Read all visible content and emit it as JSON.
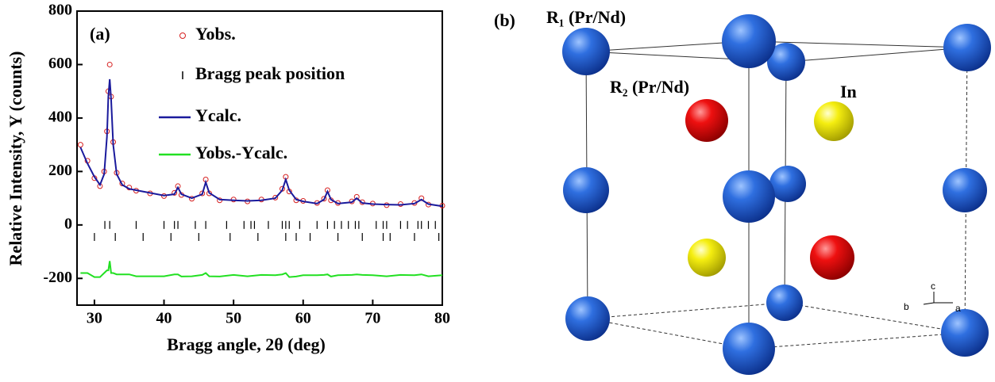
{
  "chart_data": {
    "type": "line",
    "panel_label": "(a)",
    "xlabel": "Bragg angle, 2θ (deg)",
    "ylabel": "Relative Intensity, Y (counts)",
    "xlim": [
      27.5,
      80
    ],
    "xticks": [
      30,
      40,
      50,
      60,
      70,
      80
    ],
    "ylim": [
      -300,
      800
    ],
    "yticks": [
      -200,
      0,
      200,
      400,
      600,
      800
    ],
    "x": [
      28,
      29,
      30,
      30.8,
      31.4,
      31.8,
      32.0,
      32.2,
      32.4,
      32.7,
      33.2,
      34,
      35,
      36,
      38,
      40,
      41.5,
      42,
      42.5,
      44,
      45.5,
      46,
      46.5,
      48,
      50,
      52,
      54,
      56,
      57,
      57.5,
      58,
      59,
      60,
      62,
      63,
      63.5,
      64,
      65,
      67,
      67.7,
      68.5,
      70,
      72,
      74,
      76,
      77,
      78,
      80
    ],
    "series": [
      {
        "name": "Yobs.",
        "color": "#d62020",
        "marker": "circle",
        "values": [
          300,
          240,
          175,
          145,
          200,
          350,
          500,
          600,
          480,
          310,
          195,
          155,
          140,
          128,
          118,
          108,
          120,
          145,
          112,
          98,
          118,
          170,
          118,
          92,
          95,
          88,
          95,
          102,
          135,
          180,
          125,
          92,
          90,
          82,
          98,
          130,
          92,
          82,
          88,
          105,
          85,
          80,
          74,
          78,
          82,
          100,
          76,
          72
        ]
      },
      {
        "name": "Bragg peak position",
        "color": "#000000",
        "marker": "tick",
        "x": [
          31.5,
          32.2,
          36,
          40,
          41.5,
          42,
          44.5,
          46,
          49,
          51.5,
          52.5,
          53,
          55,
          57,
          57.5,
          58,
          59.5,
          62,
          63.5,
          64.5,
          65.5,
          66.5,
          67.5,
          68,
          70.5,
          71.5,
          72,
          74,
          75,
          76.5,
          77,
          78,
          79,
          30,
          33,
          37,
          41,
          45,
          49.5,
          53.5,
          57.5,
          59,
          61,
          65,
          68.5,
          71.5,
          72.5,
          76,
          79.5
        ],
        "values": [
          0,
          0,
          0,
          0,
          0,
          0,
          0,
          0,
          0,
          0,
          0,
          0,
          0,
          0,
          0,
          0,
          0,
          0,
          0,
          0,
          0,
          0,
          0,
          0,
          0,
          0,
          0,
          0,
          0,
          0,
          0,
          0,
          0,
          -45,
          -45,
          -45,
          -45,
          -45,
          -45,
          -45,
          -45,
          -45,
          -45,
          -45,
          -45,
          -45,
          -45,
          -45,
          -45
        ]
      },
      {
        "name": "Ycalc.",
        "color": "#1a1a9c",
        "marker": "line",
        "values": [
          290,
          230,
          180,
          150,
          190,
          330,
          480,
          545,
          470,
          300,
          190,
          150,
          135,
          130,
          120,
          110,
          115,
          140,
          115,
          100,
          115,
          160,
          120,
          95,
          92,
          90,
          92,
          100,
          130,
          170,
          130,
          95,
          88,
          80,
          95,
          125,
          95,
          80,
          85,
          100,
          82,
          78,
          76,
          75,
          80,
          95,
          78,
          70
        ]
      },
      {
        "name": "Yobs.-Ycalc.",
        "color": "#22e022",
        "marker": "line",
        "values": [
          -180,
          -180,
          -195,
          -195,
          -180,
          -170,
          -170,
          -135,
          -180,
          -180,
          -185,
          -185,
          -185,
          -192,
          -192,
          -192,
          -185,
          -185,
          -193,
          -192,
          -187,
          -180,
          -192,
          -193,
          -187,
          -192,
          -187,
          -188,
          -185,
          -180,
          -195,
          -193,
          -188,
          -188,
          -187,
          -185,
          -193,
          -188,
          -187,
          -185,
          -187,
          -188,
          -192,
          -187,
          -188,
          -185,
          -192,
          -188
        ]
      }
    ]
  },
  "diagram": {
    "panel_label": "(b)",
    "atoms": {
      "r1": "R₁ (Pr/Nd)",
      "r2": "R₂ (Pr/Nd)",
      "in": "In"
    },
    "axes": {
      "c": "c",
      "b": "b",
      "a": "a"
    }
  }
}
